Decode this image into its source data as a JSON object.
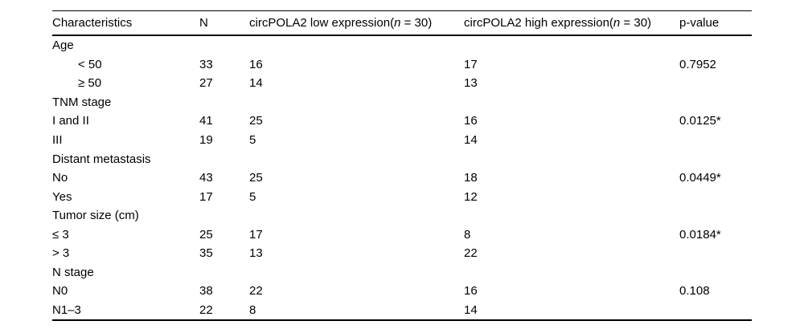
{
  "colors": {
    "background": "#ffffff",
    "text": "#000000",
    "rule": "#000000"
  },
  "table": {
    "header": {
      "characteristics": "Characteristics",
      "n": "N",
      "low_prefix": "circPOLA2 low expression(",
      "low_n": "n",
      "low_suffix": " = 30)",
      "high_prefix": "circPOLA2 high expression(",
      "high_n": "n",
      "high_suffix": " = 30)",
      "p_value": "p-value"
    },
    "rows": [
      {
        "label": "Age",
        "n": "",
        "low": "",
        "high": "",
        "p": ""
      },
      {
        "label": "< 50",
        "n": "33",
        "low": "16",
        "high": "17",
        "p": "0.7952"
      },
      {
        "label": "≥ 50",
        "n": "27",
        "low": "14",
        "high": "13",
        "p": ""
      },
      {
        "label": "TNM stage",
        "n": "",
        "low": "",
        "high": "",
        "p": ""
      },
      {
        "label": "I and II",
        "n": "41",
        "low": "25",
        "high": "16",
        "p": "0.0125*"
      },
      {
        "label": "III",
        "n": "19",
        "low": "5",
        "high": "14",
        "p": ""
      },
      {
        "label": "Distant metastasis",
        "n": "",
        "low": "",
        "high": "",
        "p": ""
      },
      {
        "label": "No",
        "n": "43",
        "low": "25",
        "high": "18",
        "p": "0.0449*"
      },
      {
        "label": "Yes",
        "n": "17",
        "low": "5",
        "high": "12",
        "p": ""
      },
      {
        "label": "Tumor size (cm)",
        "n": "",
        "low": "",
        "high": "",
        "p": ""
      },
      {
        "label": "≤ 3",
        "n": "25",
        "low": "17",
        "high": "8",
        "p": "0.0184*"
      },
      {
        "label": "> 3",
        "n": "35",
        "low": "13",
        "high": "22",
        "p": ""
      },
      {
        "label": "N stage",
        "n": "",
        "low": "",
        "high": "",
        "p": ""
      },
      {
        "label": "N0",
        "n": "38",
        "low": "22",
        "high": "16",
        "p": "0.108"
      },
      {
        "label": "N1–3",
        "n": "22",
        "low": "8",
        "high": "14",
        "p": ""
      }
    ]
  }
}
